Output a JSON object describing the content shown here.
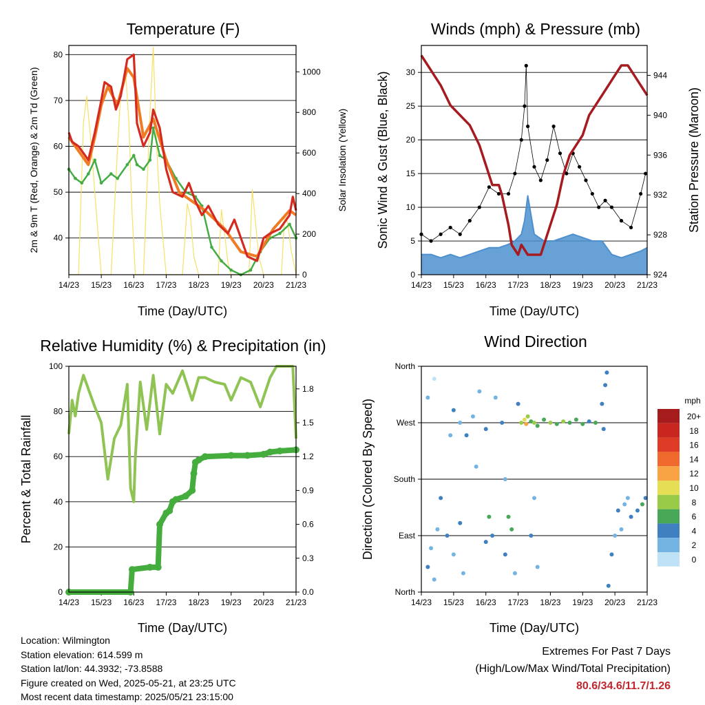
{
  "info": {
    "location": "Location: Wilmington",
    "elevation": "Station elevation: 614.599 m",
    "latlon": "Station lat/lon: 44.3932; -73.8588",
    "created": "Figure created on Wed, 2025-05-21, at 23:25 UTC",
    "latest": "Most recent data timestamp: 2025/05/21 23:15:00"
  },
  "extremes": {
    "heading": "Extremes For Past 7 Days",
    "subheading": "(High/Low/Max Wind/Total Precipitation)",
    "values": "80.6/34.6/11.7/1.26"
  },
  "colors": {
    "temp_2m": "#d42a1f",
    "temp_9m": "#f07b25",
    "dewpoint": "#45ac45",
    "solar": "#f6e066",
    "wind": "#4e90cf",
    "gust": "#000000",
    "pressure": "#a51b1f",
    "rh": "#8fc454",
    "precip": "#44ad3d"
  },
  "chart_data": [
    {
      "type": "line",
      "title": "Temperature (F)",
      "xlabel": "Time (Day/UTC)",
      "ylabel": "2m & 9m T (Red, Orange) & 2m Td (Green)",
      "ylabel_right": "Solar Insolation (Yellow)",
      "xticks": [
        "14/23",
        "15/23",
        "16/23",
        "17/23",
        "18/23",
        "19/23",
        "20/23",
        "21/23"
      ],
      "xlim": [
        0,
        7
      ],
      "ylim": [
        32,
        82
      ],
      "yticks": [
        40,
        50,
        60,
        70,
        80
      ],
      "ylim_right": [
        0,
        1130
      ],
      "yticks_right": [
        0,
        200,
        400,
        600,
        800,
        1000
      ],
      "grid": "horizontal",
      "series": [
        {
          "name": "2m T",
          "x": [
            0,
            0.1,
            0.3,
            0.5,
            0.6,
            0.8,
            1.0,
            1.1,
            1.3,
            1.45,
            1.6,
            1.8,
            2.0,
            2.1,
            2.3,
            2.5,
            2.6,
            2.8,
            3.0,
            3.2,
            3.5,
            3.7,
            3.9,
            4.1,
            4.3,
            4.6,
            4.9,
            5.1,
            5.3,
            5.5,
            5.8,
            6.0,
            6.2,
            6.5,
            6.8,
            6.9,
            7.0
          ],
          "y": [
            63,
            61,
            60,
            58,
            57,
            63,
            70,
            74,
            73,
            68,
            71,
            79,
            80,
            65,
            60,
            63,
            68,
            64,
            55,
            50,
            49,
            52,
            48,
            45,
            47,
            43,
            41,
            44,
            40,
            36,
            35,
            40,
            41,
            42,
            45,
            49,
            46
          ]
        },
        {
          "name": "9m T",
          "x": [
            0,
            0.3,
            0.6,
            0.8,
            1.0,
            1.2,
            1.5,
            1.8,
            2.0,
            2.3,
            2.6,
            3.0,
            3.4,
            3.8,
            4.2,
            4.8,
            5.3,
            5.8,
            6.3,
            6.8,
            7.0
          ],
          "y": [
            62,
            59,
            56,
            62,
            69,
            73,
            69,
            77,
            75,
            62,
            66,
            57,
            50,
            48,
            46,
            42,
            37,
            36,
            42,
            46,
            45
          ]
        },
        {
          "name": "2m Td",
          "x": [
            0,
            0.2,
            0.4,
            0.6,
            0.8,
            1.0,
            1.3,
            1.5,
            1.8,
            2.0,
            2.1,
            2.3,
            2.5,
            2.6,
            2.8,
            3.0,
            3.3,
            3.6,
            3.9,
            4.1,
            4.4,
            4.7,
            5.0,
            5.3,
            5.6,
            5.9,
            6.2,
            6.5,
            6.8,
            7.0
          ],
          "y": [
            55,
            53,
            52,
            54,
            57,
            52,
            54,
            53,
            56,
            58,
            56,
            55,
            57,
            64,
            58,
            57,
            53,
            50,
            49,
            47,
            38,
            35,
            33,
            32,
            33,
            37,
            40,
            41,
            43,
            40
          ]
        },
        {
          "name": "Solar",
          "x": [
            0,
            0.3,
            0.45,
            0.55,
            0.7,
            0.85,
            1.0,
            1.3,
            1.5,
            1.6,
            1.75,
            1.85,
            1.95,
            2.05,
            2.3,
            2.5,
            2.6,
            2.7,
            2.8,
            3.0,
            3.5,
            3.65,
            3.75,
            3.85,
            4.0,
            4.6,
            4.7,
            4.8,
            4.9,
            5.0,
            5.55,
            5.65,
            5.75,
            5.85,
            6.0,
            6.55,
            6.65,
            6.75,
            6.85,
            7.0
          ],
          "y": [
            0,
            0,
            750,
            880,
            620,
            300,
            0,
            0,
            620,
            900,
            1000,
            750,
            300,
            0,
            0,
            800,
            1120,
            650,
            350,
            0,
            0,
            350,
            280,
            90,
            0,
            0,
            320,
            200,
            60,
            0,
            0,
            420,
            260,
            90,
            0,
            0,
            300,
            250,
            120,
            0
          ]
        }
      ]
    },
    {
      "type": "scatter",
      "title": "Winds (mph) & Pressure (mb)",
      "xlabel": "Time (Day/UTC)",
      "ylabel": "Sonic Wind & Gust (Blue, Black)",
      "ylabel_right": "Station Pressure (Maroon)",
      "xticks": [
        "14/23",
        "15/23",
        "16/23",
        "17/23",
        "18/23",
        "19/23",
        "20/23",
        "21/23"
      ],
      "xlim": [
        0,
        7
      ],
      "ylim": [
        0,
        34
      ],
      "yticks": [
        0,
        5,
        10,
        15,
        20,
        25,
        30
      ],
      "ylim_right": [
        924,
        947
      ],
      "yticks_right": [
        924,
        928,
        932,
        936,
        940,
        944
      ],
      "grid": "horizontal",
      "series": [
        {
          "name": "Sonic Wind",
          "x": [
            0,
            0.3,
            0.6,
            0.9,
            1.2,
            1.5,
            1.8,
            2.1,
            2.4,
            2.7,
            2.9,
            3.1,
            3.2,
            3.3,
            3.5,
            3.8,
            4.1,
            4.4,
            4.7,
            5.0,
            5.3,
            5.6,
            5.9,
            6.2,
            6.5,
            6.8,
            7.0
          ],
          "y": [
            3,
            3,
            2.5,
            3,
            2.5,
            3,
            3.5,
            4,
            4,
            4.5,
            5,
            6,
            8,
            11.7,
            6,
            5,
            5,
            5.5,
            6,
            5.5,
            5,
            5,
            3,
            2.5,
            3,
            3.5,
            4
          ]
        },
        {
          "name": "Gust",
          "x": [
            0,
            0.3,
            0.6,
            0.9,
            1.2,
            1.5,
            1.8,
            2.1,
            2.4,
            2.7,
            2.9,
            3.1,
            3.2,
            3.25,
            3.3,
            3.5,
            3.7,
            3.9,
            4.1,
            4.3,
            4.5,
            4.7,
            4.9,
            5.1,
            5.3,
            5.5,
            5.7,
            5.9,
            6.2,
            6.5,
            6.8,
            6.95
          ],
          "y": [
            6,
            5,
            6,
            7,
            6,
            8,
            10,
            13,
            12,
            12,
            15,
            20,
            25,
            31,
            22,
            16,
            14,
            17,
            22,
            18,
            15,
            18,
            16,
            14,
            12,
            10,
            11,
            10,
            8,
            7,
            12,
            15
          ]
        },
        {
          "name": "Pressure",
          "x": [
            0,
            0.2,
            0.4,
            0.6,
            0.9,
            1.2,
            1.5,
            1.8,
            2.0,
            2.2,
            2.4,
            2.5,
            2.7,
            2.8,
            3.0,
            3.1,
            3.3,
            3.5,
            3.7,
            3.8,
            4.0,
            4.2,
            4.4,
            4.6,
            4.8,
            5.0,
            5.2,
            5.4,
            5.6,
            5.8,
            6.0,
            6.2,
            6.4,
            6.6,
            6.8,
            7.0
          ],
          "y": [
            946,
            945,
            944,
            943,
            941,
            940,
            939,
            937,
            935,
            933,
            933,
            932,
            929,
            927,
            926,
            927,
            926,
            926,
            926,
            927,
            929,
            931,
            934,
            936,
            937,
            938,
            940,
            941,
            942,
            943,
            944,
            945,
            945,
            944,
            943,
            942
          ]
        }
      ]
    },
    {
      "type": "line",
      "title": "Relative Humidity (%) & Precipitation (in)",
      "xlabel": "Time (Day/UTC)",
      "ylabel": "Percent & Total Rainfall",
      "xticks": [
        "14/23",
        "15/23",
        "16/23",
        "17/23",
        "18/23",
        "19/23",
        "20/23",
        "21/23"
      ],
      "xlim": [
        0,
        7
      ],
      "ylim": [
        0,
        100
      ],
      "yticks": [
        0,
        20,
        40,
        60,
        80,
        100
      ],
      "ylim_right": [
        0,
        2.0
      ],
      "yticks_right": [
        0.0,
        0.3,
        0.6,
        0.9,
        1.2,
        1.5,
        1.8
      ],
      "grid": "horizontal",
      "series": [
        {
          "name": "RH",
          "x": [
            0,
            0.1,
            0.2,
            0.3,
            0.45,
            0.6,
            0.8,
            1.0,
            1.2,
            1.4,
            1.6,
            1.8,
            1.9,
            2.0,
            2.05,
            2.2,
            2.4,
            2.6,
            2.8,
            3.0,
            3.2,
            3.5,
            3.8,
            4.0,
            4.2,
            4.5,
            4.8,
            5.0,
            5.3,
            5.6,
            5.9,
            6.2,
            6.4,
            6.6,
            6.9,
            7.0
          ],
          "y": [
            70,
            85,
            78,
            88,
            96,
            90,
            82,
            75,
            50,
            68,
            74,
            92,
            46,
            40,
            60,
            93,
            72,
            96,
            70,
            92,
            88,
            98,
            85,
            95,
            95,
            93,
            92,
            85,
            95,
            93,
            82,
            95,
            100,
            100,
            100,
            68
          ]
        },
        {
          "name": "Precip",
          "x": [
            0,
            1.9,
            1.95,
            2.5,
            2.75,
            2.8,
            3.0,
            3.1,
            3.2,
            3.3,
            3.6,
            3.8,
            3.85,
            3.9,
            4.0,
            4.2,
            5.0,
            5.5,
            6.0,
            6.2,
            6.5,
            7.0
          ],
          "y": [
            0,
            0,
            0.2,
            0.22,
            0.22,
            0.6,
            0.7,
            0.72,
            0.8,
            0.82,
            0.85,
            0.9,
            1.05,
            1.15,
            1.17,
            1.2,
            1.21,
            1.21,
            1.22,
            1.24,
            1.25,
            1.26
          ]
        }
      ]
    },
    {
      "type": "scatter",
      "title": "Wind Direction",
      "xlabel": "Time (Day/UTC)",
      "ylabel": "Direction (Colored By Speed)",
      "xticks": [
        "14/23",
        "15/23",
        "16/23",
        "17/23",
        "18/23",
        "19/23",
        "20/23",
        "21/23"
      ],
      "xlim": [
        0,
        7
      ],
      "ylim": [
        0,
        360
      ],
      "yticks": [
        "North",
        "East",
        "South",
        "West",
        "North"
      ],
      "grid": "horizontal",
      "legend": {
        "title": "mph",
        "labels": [
          "20+",
          "18",
          "16",
          "14",
          "12",
          "10",
          "8",
          "6",
          "4",
          "2",
          "0"
        ],
        "colors": [
          "#a61c1c",
          "#c9261f",
          "#dd3b26",
          "#ef6a2c",
          "#f8a444",
          "#e6df55",
          "#9acb48",
          "#48a857",
          "#3f80c1",
          "#74b4e3",
          "#bfe2f7"
        ]
      },
      "points": [
        {
          "x": 0.2,
          "y": 40,
          "s": 3
        },
        {
          "x": 0.3,
          "y": 70,
          "s": 2
        },
        {
          "x": 0.4,
          "y": 20,
          "s": 1
        },
        {
          "x": 0.5,
          "y": 100,
          "s": 2
        },
        {
          "x": 0.6,
          "y": 150,
          "s": 3
        },
        {
          "x": 0.8,
          "y": 90,
          "s": 4
        },
        {
          "x": 1.0,
          "y": 60,
          "s": 2
        },
        {
          "x": 1.2,
          "y": 110,
          "s": 3
        },
        {
          "x": 0.9,
          "y": 250,
          "s": 2
        },
        {
          "x": 1.3,
          "y": 30,
          "s": 1
        },
        {
          "x": 0.2,
          "y": 310,
          "s": 1
        },
        {
          "x": 0.4,
          "y": 340,
          "s": 0
        },
        {
          "x": 1.0,
          "y": 290,
          "s": 3
        },
        {
          "x": 1.2,
          "y": 270,
          "s": 2
        },
        {
          "x": 1.4,
          "y": 250,
          "s": 4
        },
        {
          "x": 1.6,
          "y": 280,
          "s": 2
        },
        {
          "x": 1.8,
          "y": 320,
          "s": 1
        },
        {
          "x": 1.7,
          "y": 200,
          "s": 2
        },
        {
          "x": 2.0,
          "y": 80,
          "s": 4
        },
        {
          "x": 2.1,
          "y": 120,
          "s": 6
        },
        {
          "x": 2.2,
          "y": 90,
          "s": 4
        },
        {
          "x": 2.0,
          "y": 260,
          "s": 3
        },
        {
          "x": 2.3,
          "y": 310,
          "s": 2
        },
        {
          "x": 2.5,
          "y": 270,
          "s": 4
        },
        {
          "x": 2.6,
          "y": 60,
          "s": 3
        },
        {
          "x": 2.8,
          "y": 100,
          "s": 6
        },
        {
          "x": 2.7,
          "y": 120,
          "s": 5
        },
        {
          "x": 2.9,
          "y": 30,
          "s": 2
        },
        {
          "x": 2.6,
          "y": 180,
          "s": 2
        },
        {
          "x": 3.1,
          "y": 270,
          "s": 8
        },
        {
          "x": 3.2,
          "y": 275,
          "s": 10
        },
        {
          "x": 3.25,
          "y": 268,
          "s": 12
        },
        {
          "x": 3.3,
          "y": 280,
          "s": 8
        },
        {
          "x": 3.4,
          "y": 272,
          "s": 6
        },
        {
          "x": 3.5,
          "y": 270,
          "s": 7
        },
        {
          "x": 3.6,
          "y": 265,
          "s": 5
        },
        {
          "x": 3.8,
          "y": 275,
          "s": 6
        },
        {
          "x": 4.0,
          "y": 270,
          "s": 8
        },
        {
          "x": 4.2,
          "y": 268,
          "s": 6
        },
        {
          "x": 4.4,
          "y": 272,
          "s": 7
        },
        {
          "x": 4.6,
          "y": 270,
          "s": 5
        },
        {
          "x": 4.8,
          "y": 275,
          "s": 6
        },
        {
          "x": 5.0,
          "y": 268,
          "s": 5
        },
        {
          "x": 5.2,
          "y": 272,
          "s": 4
        },
        {
          "x": 5.4,
          "y": 270,
          "s": 5
        },
        {
          "x": 3.4,
          "y": 90,
          "s": 3
        },
        {
          "x": 3.5,
          "y": 150,
          "s": 2
        },
        {
          "x": 3.6,
          "y": 40,
          "s": 2
        },
        {
          "x": 3.0,
          "y": 300,
          "s": 3
        },
        {
          "x": 5.6,
          "y": 300,
          "s": 4
        },
        {
          "x": 5.7,
          "y": 330,
          "s": 3
        },
        {
          "x": 5.75,
          "y": 350,
          "s": 4
        },
        {
          "x": 5.65,
          "y": 260,
          "s": 3
        },
        {
          "x": 5.8,
          "y": 10,
          "s": 4
        },
        {
          "x": 5.9,
          "y": 60,
          "s": 3
        },
        {
          "x": 6.0,
          "y": 90,
          "s": 2
        },
        {
          "x": 6.1,
          "y": 130,
          "s": 3
        },
        {
          "x": 6.3,
          "y": 140,
          "s": 2
        },
        {
          "x": 6.5,
          "y": 120,
          "s": 3
        },
        {
          "x": 6.7,
          "y": 130,
          "s": 4
        },
        {
          "x": 6.85,
          "y": 140,
          "s": 6
        },
        {
          "x": 6.95,
          "y": 150,
          "s": 4
        },
        {
          "x": 6.2,
          "y": 100,
          "s": 2
        },
        {
          "x": 6.4,
          "y": 150,
          "s": 1
        }
      ]
    }
  ]
}
